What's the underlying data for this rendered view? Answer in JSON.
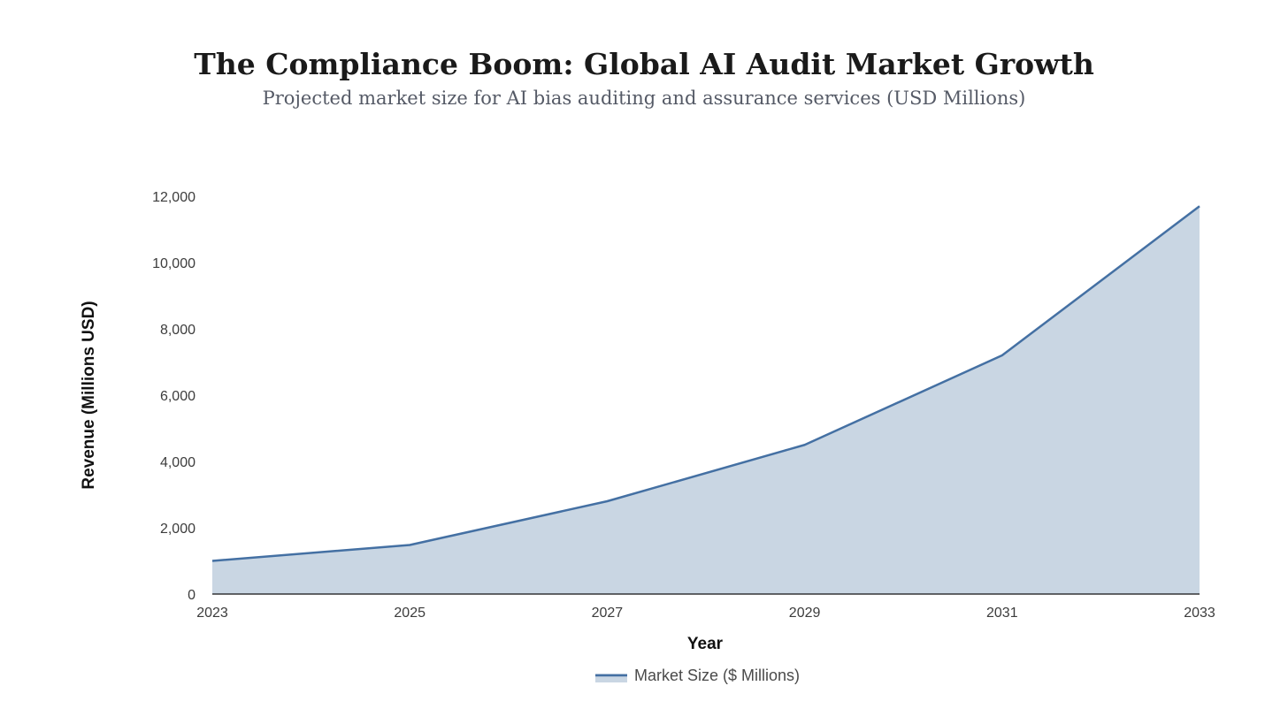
{
  "chart_data": {
    "type": "area",
    "title": "The Compliance Boom: Global AI Audit Market Growth",
    "subtitle": "Projected market size for AI bias auditing and assurance services (USD Millions)",
    "xlabel": "Year",
    "ylabel": "Revenue (Millions USD)",
    "x": [
      2023,
      2025,
      2027,
      2029,
      2031,
      2033
    ],
    "x_tick_labels": [
      "2023",
      "2025",
      "2027",
      "2029",
      "2031",
      "2033"
    ],
    "y_tick_values": [
      0,
      2000,
      4000,
      6000,
      8000,
      10000,
      12000
    ],
    "y_tick_labels": [
      "0",
      "2,000",
      "4,000",
      "6,000",
      "8,000",
      "10,000",
      "12,000"
    ],
    "xlim": [
      2023,
      2033
    ],
    "ylim": [
      0,
      12000
    ],
    "grid": false,
    "legend_position": "bottom-center",
    "series": [
      {
        "name": "Market Size ($ Millions)",
        "values": [
          1000,
          1480,
          2800,
          4500,
          7200,
          11700
        ],
        "line_color": "#4470a3",
        "fill_color": "#c9d6e3"
      }
    ]
  }
}
